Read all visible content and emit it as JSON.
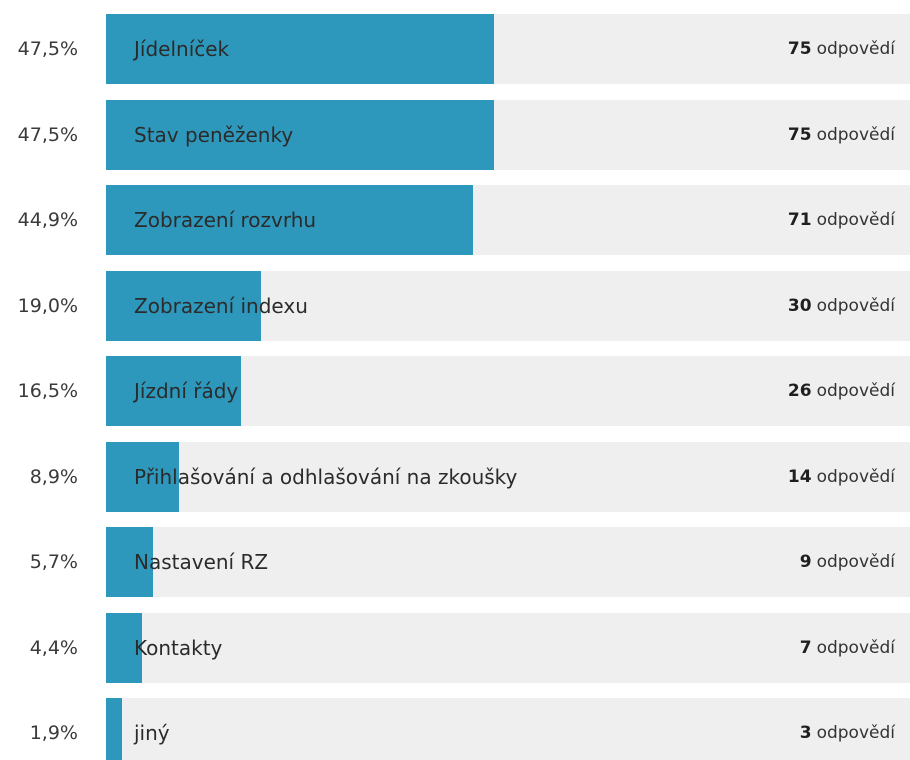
{
  "chart_data": {
    "type": "bar",
    "orientation": "horizontal",
    "count_unit": "odpovědí",
    "rows": [
      {
        "category": "Jídelníček",
        "percent_label": "47,5%",
        "percent": 47.5,
        "count": 75
      },
      {
        "category": "Stav peněženky",
        "percent_label": "47,5%",
        "percent": 47.5,
        "count": 75
      },
      {
        "category": "Zobrazení rozvrhu",
        "percent_label": "44,9%",
        "percent": 44.9,
        "count": 71
      },
      {
        "category": "Zobrazení indexu",
        "percent_label": "19,0%",
        "percent": 19.0,
        "count": 30
      },
      {
        "category": "Jízdní řády",
        "percent_label": "16,5%",
        "percent": 16.5,
        "count": 26
      },
      {
        "category": "Přihlašování a odhlašování na zkoušky",
        "percent_label": "8,9%",
        "percent": 8.9,
        "count": 14
      },
      {
        "category": "Nastavení RZ",
        "percent_label": "5,7%",
        "percent": 5.7,
        "count": 9
      },
      {
        "category": "Kontakty",
        "percent_label": "4,4%",
        "percent": 4.4,
        "count": 7
      },
      {
        "category": "jiný",
        "percent_label": "1,9%",
        "percent": 1.9,
        "count": 3
      }
    ],
    "colors": {
      "bar": "#2e98bc",
      "track": "#efefef"
    }
  }
}
